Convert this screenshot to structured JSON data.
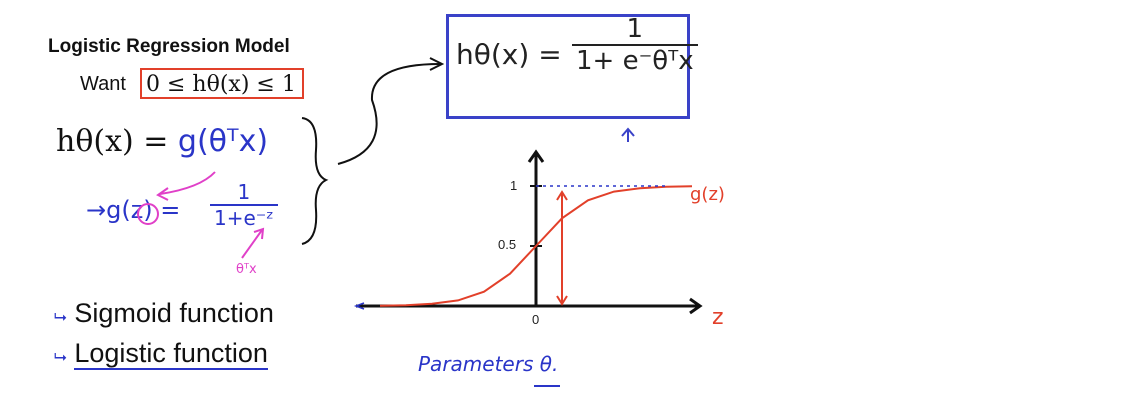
{
  "title": "Logistic Regression Model",
  "want": {
    "label": "Want",
    "condition": "0 ≤ hθ(x) ≤ 1"
  },
  "hypothesis": {
    "lhs": "hθ(x) = ",
    "g_part": "g(θᵀx)"
  },
  "boxed": {
    "lhs": "hθ(x) =",
    "numerator": "1",
    "denominator": "1+ e⁻θᵀx"
  },
  "sigmoid_def": {
    "lhs": "→g(z) =",
    "numerator": "1",
    "denominator": "1+e⁻ᶻ",
    "note": "θᵀx"
  },
  "terms": {
    "sigmoid": "Sigmoid function",
    "logistic": "Logistic function"
  },
  "graph": {
    "y_tick_1": "1",
    "y_tick_half": "0.5",
    "x_tick_0": "0",
    "curve_label": "g(z)",
    "x_axis_label": "z"
  },
  "parameters_note": "Parameters θ.",
  "colors": {
    "ink": "#111111",
    "blue_ink": "#2a35c8",
    "red_ink": "#e2402a",
    "pink_ink": "#e040c8",
    "box_border": "#3a42c8"
  },
  "chart_data": {
    "type": "line",
    "series": [
      {
        "name": "g(z)",
        "x": [
          -6,
          -5,
          -4,
          -3,
          -2,
          -1,
          0,
          1,
          2,
          3,
          4,
          5,
          6
        ],
        "values": [
          0.002,
          0.007,
          0.018,
          0.047,
          0.119,
          0.269,
          0.5,
          0.731,
          0.881,
          0.953,
          0.982,
          0.993,
          0.998
        ]
      }
    ],
    "xlabel": "z",
    "ylabel": "",
    "yticks": [
      0.5,
      1
    ],
    "xticks": [
      0
    ],
    "xlim": [
      -6,
      6
    ],
    "ylim": [
      0,
      1.25
    ],
    "asymptote": 1,
    "grid": false
  }
}
